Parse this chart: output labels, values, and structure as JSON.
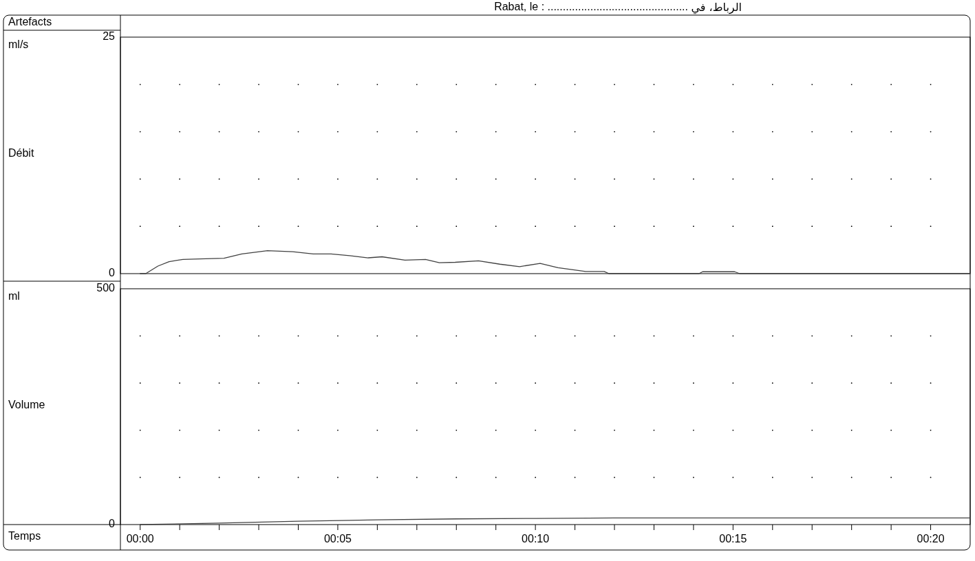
{
  "chart_data": [
    {
      "type": "line",
      "annotations": [
        "Artefacts",
        "ml/s",
        "Rabat, le : ..............................................",
        "الرباط، في"
      ],
      "ylabel": "Débit",
      "color": "#404040",
      "xlim": [
        -0.5,
        21
      ],
      "ylim": [
        0,
        25
      ],
      "yticks": [
        0,
        {
          "value": 5,
          "label": null
        },
        {
          "value": 10,
          "label": null
        },
        {
          "value": 15,
          "label": null
        },
        {
          "value": 20,
          "label": null
        },
        25
      ],
      "grid": "y",
      "tick_labels": "y",
      "x": [
        0,
        0.14,
        0.45,
        0.73,
        1.08,
        1.5,
        2.12,
        2.57,
        3.22,
        3.86,
        4.38,
        4.83,
        5.3,
        5.77,
        6.12,
        6.7,
        7.22,
        7.57,
        7.97,
        8.56,
        9.1,
        9.6,
        10.12,
        10.57,
        11.27,
        11.74,
        11.86,
        14.14,
        14.23,
        15.04,
        15.17,
        21
      ],
      "values": [
        0,
        0,
        0.8,
        1.27,
        1.5,
        1.55,
        1.62,
        2.08,
        2.43,
        2.31,
        2.08,
        2.08,
        1.9,
        1.67,
        1.78,
        1.43,
        1.5,
        1.16,
        1.2,
        1.36,
        1.0,
        0.74,
        1.08,
        0.62,
        0.23,
        0.23,
        0,
        0,
        0.2,
        0.2,
        0,
        0
      ]
    },
    {
      "type": "line",
      "annotations": [
        "ml"
      ],
      "ylabel": "Volume",
      "xlabel": "Temps",
      "color": "#404040",
      "xlim": [
        -0.5,
        21
      ],
      "ylim": [
        0,
        500
      ],
      "xticks": [
        {
          "value": 0,
          "label": "00:00"
        },
        {
          "value": 1,
          "label": null
        },
        {
          "value": 2,
          "label": null
        },
        {
          "value": 3,
          "label": null
        },
        {
          "value": 4,
          "label": null
        },
        {
          "value": 5,
          "label": "00:05"
        },
        {
          "value": 6,
          "label": null
        },
        {
          "value": 7,
          "label": null
        },
        {
          "value": 8,
          "label": null
        },
        {
          "value": 9,
          "label": null
        },
        {
          "value": 10,
          "label": "00:10"
        },
        {
          "value": 11,
          "label": null
        },
        {
          "value": 12,
          "label": null
        },
        {
          "value": 13,
          "label": null
        },
        {
          "value": 14,
          "label": null
        },
        {
          "value": 15,
          "label": "00:15"
        },
        {
          "value": 16,
          "label": null
        },
        {
          "value": 17,
          "label": null
        },
        {
          "value": 18,
          "label": null
        },
        {
          "value": 19,
          "label": null
        },
        {
          "value": 20,
          "label": "00:20"
        }
      ],
      "yticks": [
        0,
        {
          "value": 100,
          "label": null
        },
        {
          "value": 200,
          "label": null
        },
        {
          "value": 300,
          "label": null
        },
        {
          "value": 400,
          "label": null
        },
        500
      ],
      "grid": "y",
      "x": [
        0,
        2,
        4,
        6,
        8,
        10,
        12,
        21
      ],
      "values": [
        0,
        3,
        7,
        10,
        12,
        13,
        14,
        14
      ]
    }
  ]
}
